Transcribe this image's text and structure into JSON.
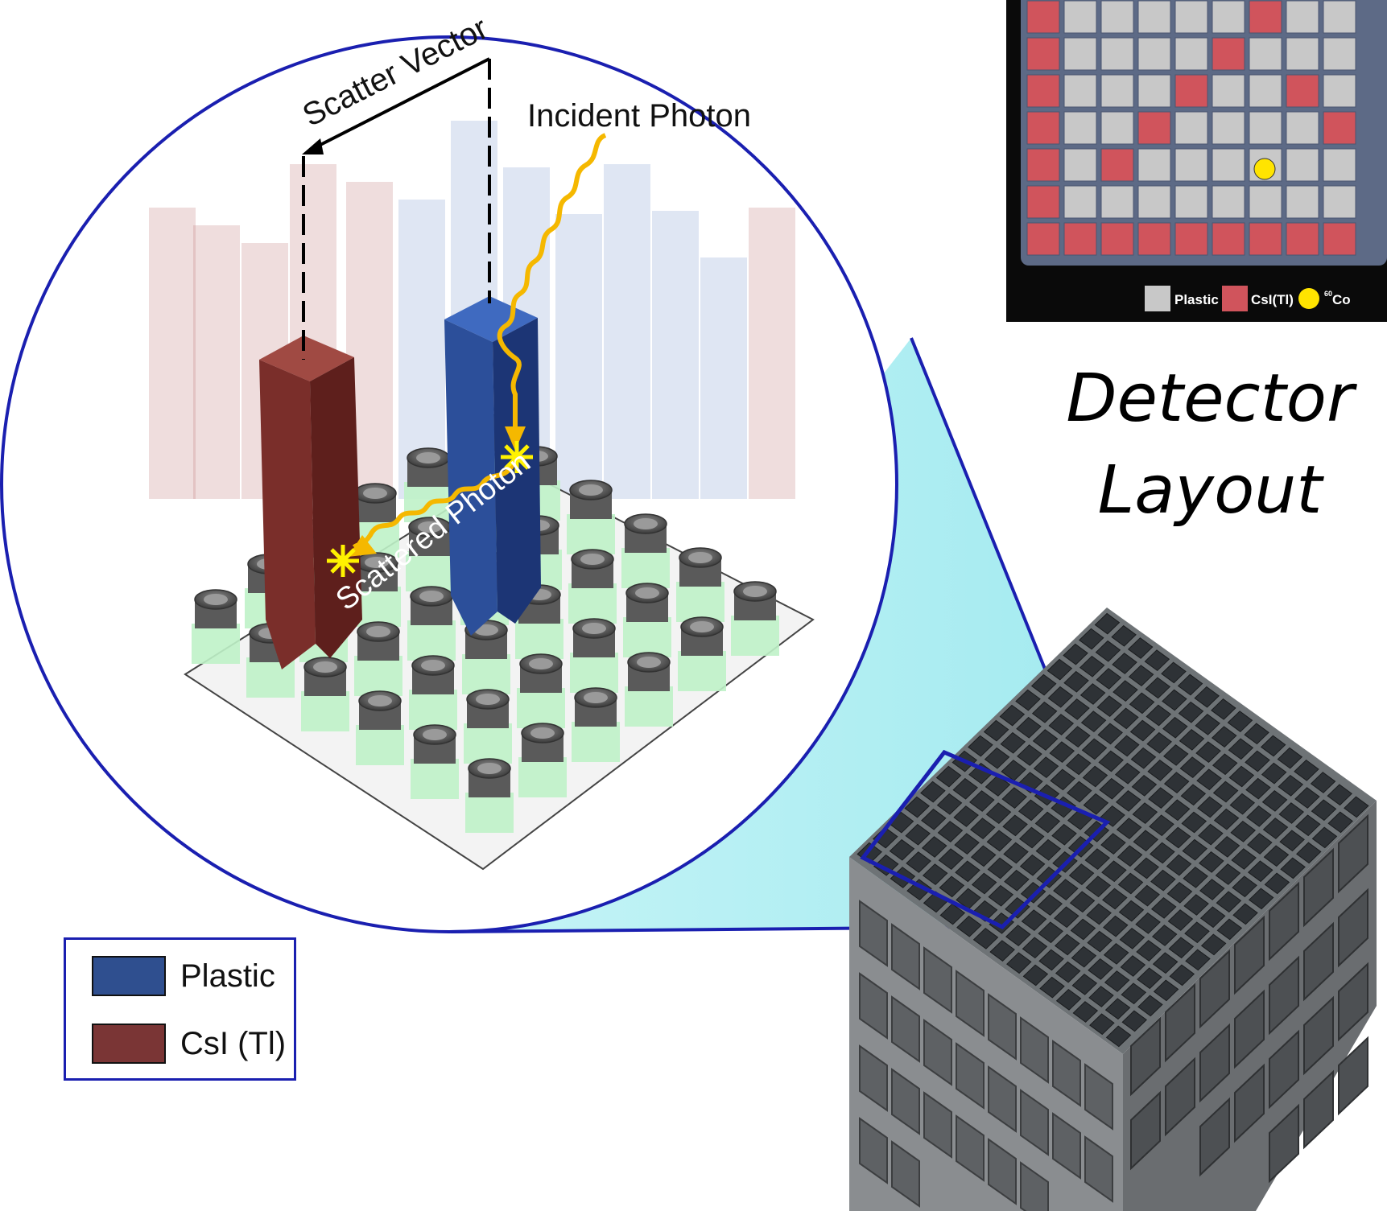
{
  "title": {
    "line1": "Detector",
    "line2": "Layout"
  },
  "annotations": {
    "scatter_vector": "Scatter Vector",
    "incident_photon": "Incident Photon",
    "scattered_photon": "Scattered Photon"
  },
  "legend": {
    "items": [
      {
        "label": "Plastic",
        "color": "#2f4f8f"
      },
      {
        "label": "CsI (Tl)",
        "color": "#7a3535"
      }
    ]
  },
  "layout_map": {
    "legend": {
      "plastic": "Plastic",
      "csi": "CsI(Tl)",
      "source_mark": "60",
      "source": "Co"
    },
    "colors": {
      "plastic": "#c8c8c8",
      "csi": "#d0545c",
      "source": "#ffe400",
      "frame": "#5d6a86",
      "bar": "#0a0a0a"
    }
  },
  "colors": {
    "outline_blue": "#1a1fb0",
    "photon_yellow": "#f5b800",
    "csi_bar": "#7a2e2a",
    "plastic_bar": "#2c4f9a",
    "zoom_fill": "#bdf3f6"
  }
}
